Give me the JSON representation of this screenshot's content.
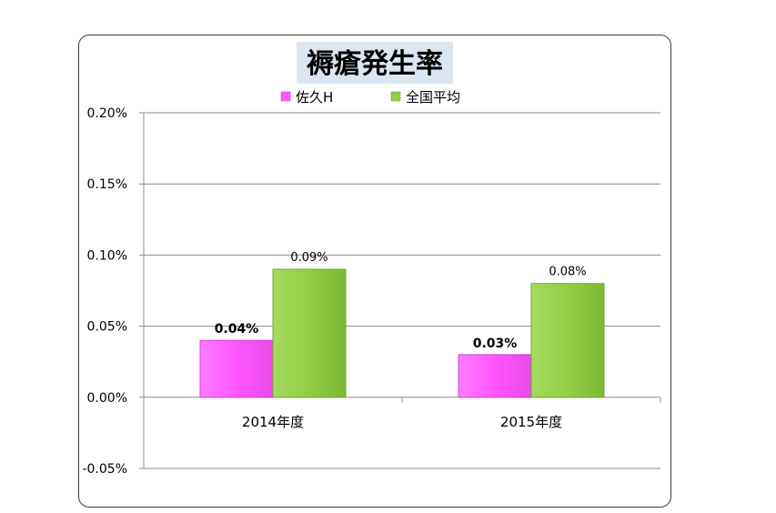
{
  "chart_data": {
    "type": "bar",
    "title": "褥瘡発生率",
    "categories": [
      "2014年度",
      "2015年度"
    ],
    "series": [
      {
        "name": "佐久H",
        "values": [
          0.04,
          0.03
        ],
        "labels": [
          "0.04%",
          "0.03%"
        ],
        "color": "#ff66ff",
        "label_bold": true
      },
      {
        "name": "全国平均",
        "values": [
          0.09,
          0.08
        ],
        "labels": [
          "0.09%",
          "0.08%"
        ],
        "color": "#99d151",
        "label_bold": false
      }
    ],
    "ylim": [
      -0.05,
      0.2
    ],
    "yticks": [
      -0.05,
      0.0,
      0.05,
      0.1,
      0.15,
      0.2
    ],
    "ytick_labels": [
      "-0.05%",
      "0.00%",
      "0.05%",
      "0.10%",
      "0.15%",
      "0.20%"
    ],
    "grid": true,
    "legend_position": "top",
    "xlabel": "",
    "ylabel": ""
  }
}
